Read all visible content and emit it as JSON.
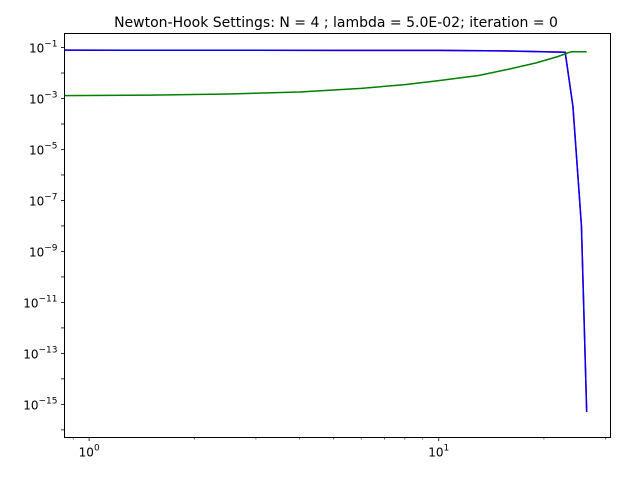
{
  "chart_data": {
    "type": "line",
    "title": "Newton-Hook Settings: N = 4 ; lambda = 5.0E-02; iteration = 0",
    "xlabel": "",
    "ylabel": "",
    "xscale": "log",
    "yscale": "log",
    "xlim": [
      0.85,
      31
    ],
    "ylim_log10": [
      -16.3,
      -0.45
    ],
    "x_ticks": [
      {
        "value": 1,
        "base": "10",
        "exp": "0"
      },
      {
        "value": 10,
        "base": "10",
        "exp": "1"
      }
    ],
    "y_ticks": [
      {
        "value": -1,
        "base": "10",
        "exp": "−1"
      },
      {
        "value": -3,
        "base": "10",
        "exp": "−3"
      },
      {
        "value": -5,
        "base": "10",
        "exp": "−5"
      },
      {
        "value": -7,
        "base": "10",
        "exp": "−7"
      },
      {
        "value": -9,
        "base": "10",
        "exp": "−9"
      },
      {
        "value": -11,
        "base": "10",
        "exp": "−11"
      },
      {
        "value": -13,
        "base": "10",
        "exp": "−13"
      },
      {
        "value": -15,
        "base": "10",
        "exp": "−15"
      }
    ],
    "grid": false,
    "legend": "none",
    "series": [
      {
        "color": "#0000ff",
        "points": [
          [
            0.85,
            0.079
          ],
          [
            2,
            0.078
          ],
          [
            5,
            0.0775
          ],
          [
            10,
            0.077
          ],
          [
            15,
            0.074
          ],
          [
            20,
            0.068
          ],
          [
            23,
            0.065
          ],
          [
            24.2,
            0.0005
          ],
          [
            25,
            1e-06
          ],
          [
            25.6,
            1e-08
          ],
          [
            26.5,
            5e-16
          ]
        ]
      },
      {
        "color": "#ff0000",
        "points": [
          [
            0.85,
            0.079
          ],
          [
            2,
            0.078
          ],
          [
            5,
            0.0775
          ],
          [
            10,
            0.077
          ],
          [
            15,
            0.074
          ],
          [
            20,
            0.068
          ],
          [
            23,
            0.065
          ],
          [
            24.2,
            0.0005
          ],
          [
            25,
            1e-06
          ],
          [
            25.6,
            1e-08
          ],
          [
            26.5,
            5e-16
          ]
        ]
      },
      {
        "color": "#008000",
        "points": [
          [
            0.85,
            0.0013
          ],
          [
            1.5,
            0.00135
          ],
          [
            2.5,
            0.0015
          ],
          [
            4,
            0.0018
          ],
          [
            6,
            0.0025
          ],
          [
            8,
            0.0035
          ],
          [
            10,
            0.005
          ],
          [
            13,
            0.008
          ],
          [
            16,
            0.0145
          ],
          [
            19,
            0.025
          ],
          [
            22,
            0.045
          ],
          [
            23.5,
            0.063
          ],
          [
            24,
            0.0685
          ],
          [
            26.5,
            0.068
          ]
        ]
      }
    ]
  }
}
